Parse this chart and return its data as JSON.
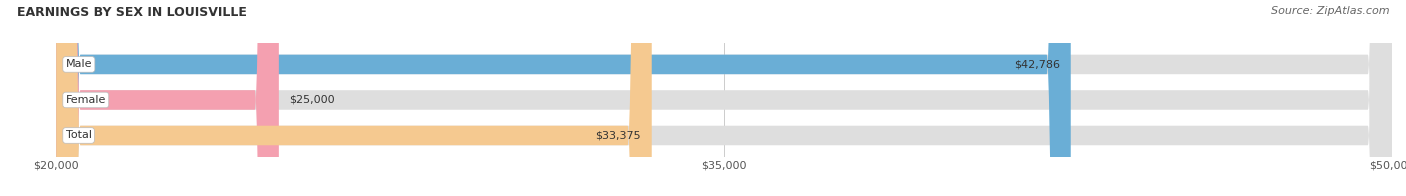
{
  "title": "EARNINGS BY SEX IN LOUISVILLE",
  "source": "Source: ZipAtlas.com",
  "categories": [
    "Male",
    "Female",
    "Total"
  ],
  "values": [
    42786,
    25000,
    33375
  ],
  "bar_colors": [
    "#6aaed6",
    "#f4a0b0",
    "#f5c990"
  ],
  "x_min": 20000,
  "x_max": 50000,
  "x_ticks": [
    20000,
    35000,
    50000
  ],
  "x_tick_labels": [
    "$20,000",
    "$35,000",
    "$50,000"
  ],
  "value_labels": [
    "$42,786",
    "$25,000",
    "$33,375"
  ],
  "title_fontsize": 9,
  "source_fontsize": 8,
  "bar_label_fontsize": 8,
  "value_label_fontsize": 8,
  "tick_fontsize": 8,
  "bar_height": 0.55,
  "background_color": "#ffffff"
}
